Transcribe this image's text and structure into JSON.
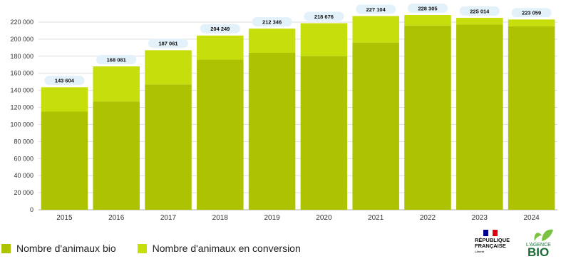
{
  "chart_data": {
    "type": "bar",
    "stacked": true,
    "categories": [
      "2015",
      "2016",
      "2017",
      "2018",
      "2019",
      "2020",
      "2021",
      "2022",
      "2023",
      "2024"
    ],
    "series": [
      {
        "name": "Nombre d'animaux bio",
        "values": [
          115000,
          127000,
          147000,
          176000,
          184000,
          180000,
          196000,
          216000,
          217000,
          215000
        ]
      },
      {
        "name": "Nombre d'animaux en conversion",
        "values": [
          28604,
          41081,
          40061,
          28249,
          28346,
          38676,
          31104,
          12305,
          8014,
          8059
        ]
      }
    ],
    "totals": [
      143604,
      168081,
      187061,
      204249,
      212346,
      218676,
      227104,
      228305,
      225014,
      223059
    ],
    "total_labels": [
      "143 604",
      "168 081",
      "187 061",
      "204 249",
      "212 346",
      "218 676",
      "227 104",
      "228 305",
      "225 014",
      "223 059"
    ],
    "yticks": [
      0,
      20000,
      40000,
      60000,
      80000,
      100000,
      120000,
      140000,
      160000,
      180000,
      200000,
      220000
    ],
    "ytick_labels": [
      "0",
      "20 000",
      "40 000",
      "60 000",
      "80 000",
      "100 000",
      "120 000",
      "140 000",
      "160 000",
      "180 000",
      "200 000",
      "220 000"
    ],
    "ylim": [
      0,
      230000
    ],
    "grid": true,
    "legend_position": "bottom-left",
    "colors": {
      "bio": "#adc301",
      "conversion": "#c6de0b",
      "label_bubble": "#e3f1fb",
      "grid": "#dddddd"
    }
  },
  "legend": {
    "items": [
      {
        "label": "Nombre d'animaux bio",
        "color": "#adc301"
      },
      {
        "label": "Nombre d'animaux en conversion",
        "color": "#c6de0b"
      }
    ]
  },
  "logos": {
    "republique_line1": "RÉPUBLIQUE",
    "republique_line2": "FRANÇAISE",
    "republique_motto": "Liberté",
    "agence_line1": "L'AGENCE",
    "agence_line2": "BIO",
    "flag_colors": [
      "#000091",
      "#ffffff",
      "#e1000f"
    ],
    "agence_color": "#1a6b36"
  }
}
